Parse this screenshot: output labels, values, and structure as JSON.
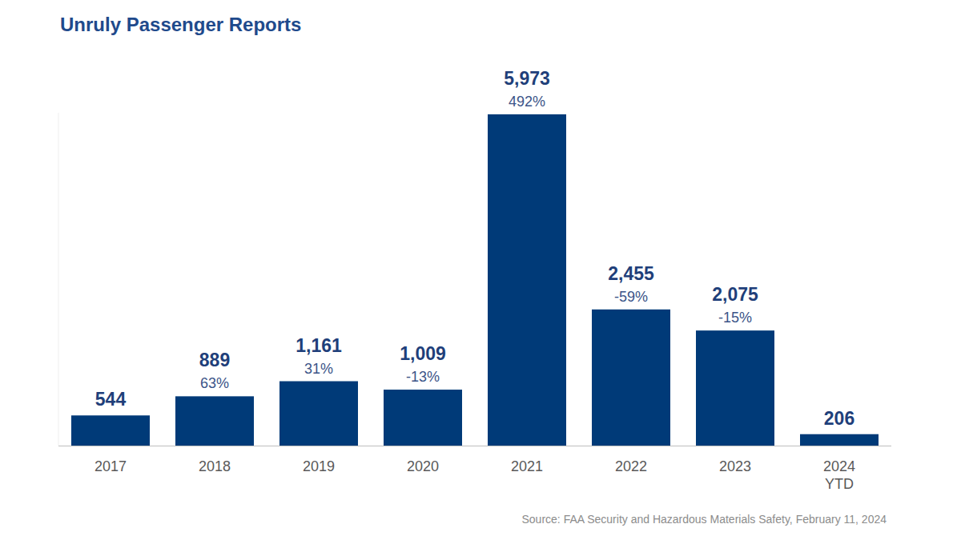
{
  "chart_data": {
    "type": "bar",
    "title": "Unruly Passenger Reports",
    "categories": [
      "2017",
      "2018",
      "2019",
      "2020",
      "2021",
      "2022",
      "2023",
      "2024 YTD"
    ],
    "values": [
      544,
      889,
      1161,
      1009,
      5973,
      2455,
      2075,
      206
    ],
    "value_labels": [
      "544",
      "889",
      "1,161",
      "1,009",
      "5,973",
      "2,455",
      "2,075",
      "206"
    ],
    "change_labels": [
      null,
      "63%",
      "31%",
      "-13%",
      "492%",
      "-59%",
      "-15%",
      null
    ],
    "source": "Source: FAA Security and Hazardous Materials Safety, February 11, 2024",
    "color": "#003a78",
    "ylim": [
      0,
      6000
    ],
    "grid": false,
    "data_labels": true,
    "tick_labels": "x"
  }
}
